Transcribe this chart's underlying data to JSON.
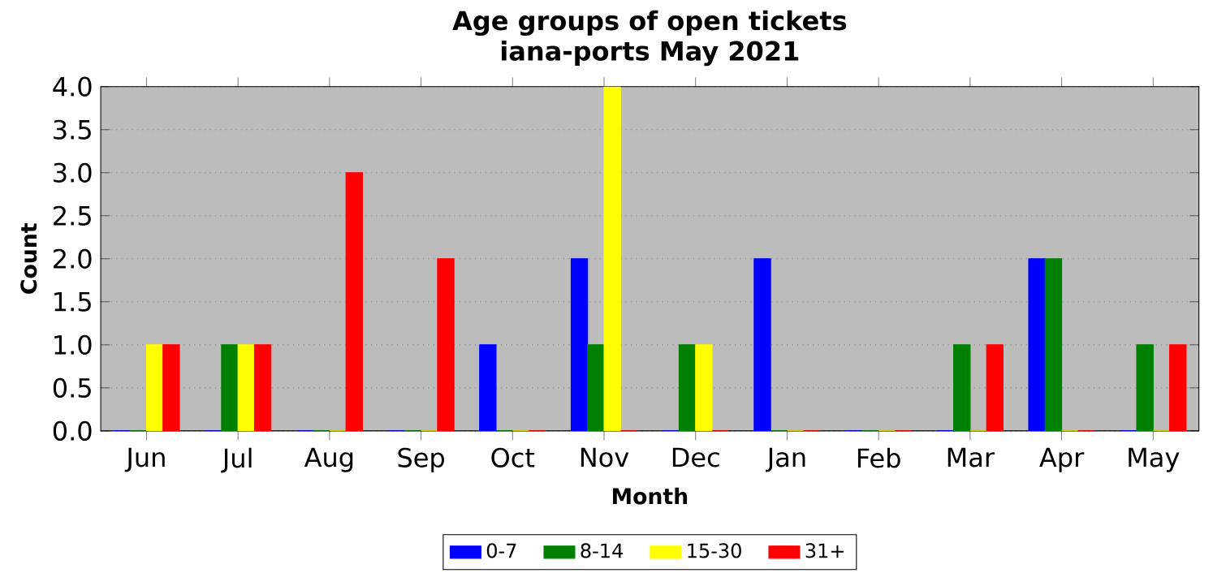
{
  "chart_data": {
    "type": "bar",
    "title": "Age groups of open tickets",
    "subtitle": "iana-ports May 2021",
    "xlabel": "Month",
    "ylabel": "Count",
    "categories": [
      "Jun",
      "Jul",
      "Aug",
      "Sep",
      "Oct",
      "Nov",
      "Dec",
      "Jan",
      "Feb",
      "Mar",
      "Apr",
      "May"
    ],
    "series": [
      {
        "name": "0-7",
        "color": "#0000ff",
        "values": [
          0,
          0,
          0,
          0,
          1,
          2,
          0,
          2,
          0,
          0,
          2,
          0
        ]
      },
      {
        "name": "8-14",
        "color": "#008000",
        "values": [
          0,
          1,
          0,
          0,
          0,
          1,
          1,
          0,
          0,
          1,
          2,
          1
        ]
      },
      {
        "name": "15-30",
        "color": "#ffff00",
        "values": [
          1,
          1,
          0,
          0,
          0,
          4,
          1,
          0,
          0,
          0,
          0,
          0
        ]
      },
      {
        "name": "31+",
        "color": "#ff0000",
        "values": [
          1,
          1,
          3,
          2,
          0,
          0,
          0,
          0,
          0,
          1,
          0,
          1
        ]
      }
    ],
    "ylim": [
      0,
      4
    ],
    "yticks": [
      {
        "value": 0,
        "label": "0.0"
      },
      {
        "value": 0.5,
        "label": "0.5"
      },
      {
        "value": 1,
        "label": "1.0"
      },
      {
        "value": 1.5,
        "label": "1.5"
      },
      {
        "value": 2,
        "label": "2.0"
      },
      {
        "value": 2.5,
        "label": "2.5"
      },
      {
        "value": 3,
        "label": "3.0"
      },
      {
        "value": 3.5,
        "label": "3.5"
      },
      {
        "value": 4,
        "label": "4.0"
      }
    ],
    "grid": "y",
    "legend": "bottom"
  }
}
